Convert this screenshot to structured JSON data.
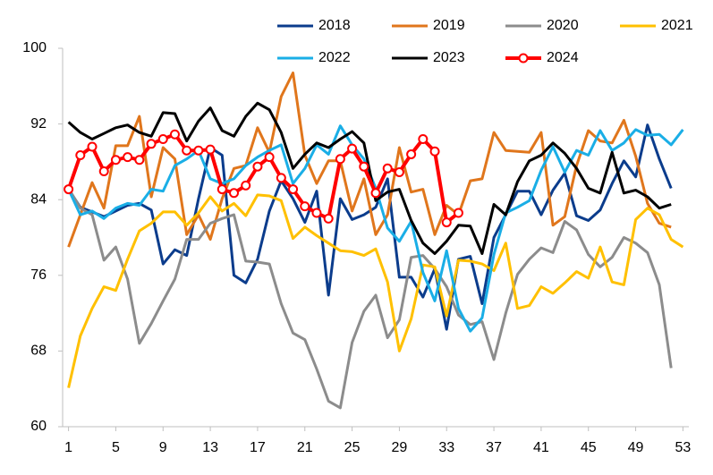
{
  "chart_data": {
    "type": "line",
    "x": [
      1,
      2,
      3,
      4,
      5,
      6,
      7,
      8,
      9,
      10,
      11,
      12,
      13,
      14,
      15,
      16,
      17,
      18,
      19,
      20,
      21,
      22,
      23,
      24,
      25,
      26,
      27,
      28,
      29,
      30,
      31,
      32,
      33,
      34,
      35,
      36,
      37,
      38,
      39,
      40,
      41,
      42,
      43,
      44,
      45,
      46,
      47,
      48,
      49,
      50,
      51,
      52,
      53
    ],
    "xlim": [
      0.5,
      53.5
    ],
    "xticks": [
      1,
      5,
      9,
      13,
      17,
      21,
      25,
      29,
      33,
      37,
      41,
      45,
      49,
      53
    ],
    "ylim": [
      60,
      100
    ],
    "yticks": [
      60,
      68,
      76,
      84,
      92,
      100
    ],
    "legend": "top-right",
    "series": [
      {
        "name": "2018",
        "color": "#0b3c8c",
        "values": [
          85.1,
          83.2,
          82.7,
          82.2,
          82.8,
          83.4,
          83.6,
          82.9,
          77.2,
          78.7,
          78.1,
          84.1,
          89.5,
          88.7,
          76.0,
          75.2,
          77.7,
          82.8,
          86.0,
          84.1,
          81.6,
          84.9,
          73.9,
          84.1,
          81.9,
          82.4,
          83.2,
          86.2,
          75.8,
          75.8,
          73.7,
          76.7,
          70.3,
          77.7,
          78.0,
          73.0,
          80.0,
          82.4,
          84.9,
          84.9,
          82.4,
          85.0,
          86.8,
          82.3,
          81.8,
          82.9,
          85.7,
          88.1,
          86.4,
          91.9,
          88.3,
          85.2,
          null
        ]
      },
      {
        "name": "2019",
        "color": "#e0761c",
        "values": [
          79.0,
          82.4,
          85.8,
          83.1,
          89.7,
          89.7,
          92.8,
          84.3,
          89.5,
          88.3,
          80.3,
          82.4,
          79.8,
          84.1,
          87.3,
          87.6,
          91.6,
          89.0,
          94.9,
          97.4,
          88.7,
          85.7,
          88.1,
          88.1,
          82.8,
          86.2,
          80.3,
          82.4,
          89.5,
          84.8,
          85.1,
          80.3,
          83.4,
          82.4,
          86.0,
          86.2,
          91.1,
          89.2,
          89.1,
          89.0,
          91.1,
          81.3,
          82.2,
          87.6,
          91.3,
          90.2,
          90.0,
          92.4,
          88.6,
          83.6,
          81.5,
          81.1,
          null
        ]
      },
      {
        "name": "2020",
        "color": "#8c8c8c",
        "values": [
          85.2,
          83.1,
          82.4,
          77.6,
          79.0,
          75.6,
          68.8,
          70.9,
          73.3,
          75.6,
          79.8,
          79.8,
          81.5,
          82.0,
          82.4,
          77.5,
          77.4,
          77.2,
          73.0,
          69.9,
          69.2,
          66.1,
          62.7,
          62.0,
          68.9,
          72.2,
          73.9,
          69.4,
          71.3,
          77.9,
          78.1,
          76.7,
          74.8,
          71.8,
          70.8,
          71.1,
          67.1,
          72.0,
          76.1,
          77.7,
          78.9,
          78.4,
          81.7,
          80.8,
          78.2,
          76.9,
          77.9,
          80.0,
          79.4,
          78.4,
          75.0,
          66.2,
          null
        ]
      },
      {
        "name": "2021",
        "color": "#ffc000",
        "values": [
          64.1,
          69.6,
          72.5,
          74.8,
          74.4,
          77.7,
          80.7,
          81.5,
          82.7,
          82.7,
          81.3,
          82.6,
          84.3,
          82.8,
          83.6,
          82.3,
          84.5,
          84.4,
          83.9,
          79.9,
          81.1,
          80.2,
          79.4,
          78.6,
          78.5,
          78.1,
          78.8,
          75.3,
          68.0,
          71.4,
          77.1,
          76.9,
          71.7,
          77.6,
          77.5,
          77.2,
          76.5,
          79.4,
          72.5,
          72.8,
          74.8,
          74.1,
          75.2,
          76.4,
          75.7,
          79.0,
          75.3,
          75.0,
          81.9,
          83.1,
          82.4,
          79.8,
          79.0
        ]
      },
      {
        "name": "2022",
        "color": "#1aaee6",
        "values": [
          85.1,
          82.4,
          82.8,
          82.0,
          83.1,
          83.6,
          83.4,
          85.1,
          84.9,
          87.6,
          88.3,
          89.2,
          86.2,
          85.7,
          86.2,
          87.6,
          88.5,
          89.2,
          89.8,
          85.7,
          87.3,
          89.8,
          88.8,
          91.8,
          89.8,
          88.3,
          85.2,
          81.0,
          79.6,
          81.7,
          76.3,
          73.3,
          78.6,
          72.5,
          70.1,
          71.5,
          78.2,
          82.6,
          83.2,
          83.9,
          87.1,
          89.6,
          86.9,
          89.2,
          88.7,
          91.3,
          89.2,
          90.0,
          91.4,
          90.8,
          90.9,
          89.8,
          91.4
        ]
      },
      {
        "name": "2023",
        "color": "#000000",
        "values": [
          92.2,
          91.1,
          90.4,
          91.0,
          91.6,
          91.9,
          91.1,
          90.7,
          93.2,
          93.1,
          90.2,
          92.3,
          93.7,
          91.3,
          90.7,
          92.8,
          94.2,
          93.5,
          91.1,
          87.3,
          88.8,
          90.0,
          89.5,
          90.4,
          91.2,
          90.0,
          83.9,
          84.8,
          85.1,
          81.8,
          79.4,
          78.3,
          79.6,
          81.3,
          81.2,
          78.3,
          83.5,
          82.4,
          85.9,
          88.1,
          88.7,
          90.0,
          88.9,
          87.3,
          85.2,
          84.7,
          89.0,
          84.7,
          85.0,
          84.3,
          83.1,
          83.5,
          null
        ]
      },
      {
        "name": "2024",
        "color": "#ff0000",
        "markers": true,
        "values": [
          85.1,
          88.7,
          89.6,
          87.0,
          88.2,
          88.5,
          88.2,
          89.9,
          90.4,
          90.9,
          89.2,
          89.2,
          89.3,
          85.1,
          84.7,
          85.5,
          87.5,
          88.5,
          86.3,
          85.1,
          83.3,
          82.6,
          82.0,
          88.3,
          89.4,
          87.5,
          84.7,
          87.3,
          86.9,
          88.8,
          90.4,
          89.1,
          81.6,
          82.6,
          null,
          null,
          null,
          null,
          null,
          null,
          null,
          null,
          null,
          null,
          null,
          null,
          null,
          null,
          null,
          null,
          null,
          null,
          null
        ]
      }
    ]
  }
}
